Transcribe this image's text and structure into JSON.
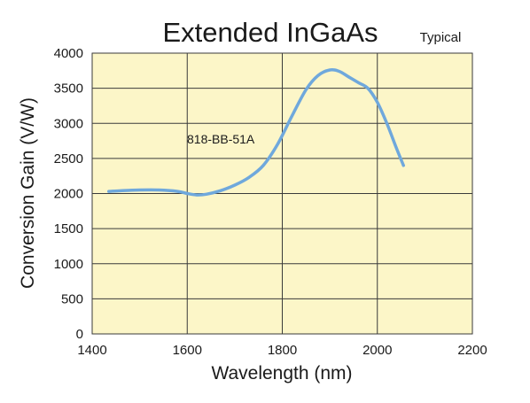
{
  "chart_data": {
    "type": "line",
    "title": "Extended InGaAs",
    "subtitle": "Typical",
    "xlabel": "Wavelength (nm)",
    "ylabel": "Conversion Gain (V/W)",
    "xlim": [
      1400,
      2200
    ],
    "ylim": [
      0,
      4000
    ],
    "xticks": [
      "1400",
      "1600",
      "1800",
      "2000",
      "2200"
    ],
    "yticks": [
      "0",
      "500",
      "1000",
      "1500",
      "2000",
      "2500",
      "3000",
      "3500",
      "4000"
    ],
    "grid": true,
    "annotation": "818-BB-51A",
    "colors": {
      "plot_background": "#fcf6c8",
      "grid": "#3a3a3a",
      "line": "#6fa8dc",
      "text": "#1a1a1a"
    },
    "series": [
      {
        "name": "818-BB-51A",
        "x": [
          1435,
          1460,
          1500,
          1540,
          1580,
          1600,
          1620,
          1640,
          1670,
          1700,
          1730,
          1760,
          1790,
          1820,
          1850,
          1875,
          1900,
          1920,
          1940,
          1960,
          1980,
          2000,
          2020,
          2040,
          2055
        ],
        "y": [
          2030,
          2040,
          2050,
          2050,
          2030,
          2000,
          1980,
          1990,
          2040,
          2120,
          2230,
          2400,
          2700,
          3100,
          3480,
          3680,
          3760,
          3740,
          3660,
          3580,
          3500,
          3300,
          3000,
          2650,
          2400
        ]
      }
    ]
  }
}
